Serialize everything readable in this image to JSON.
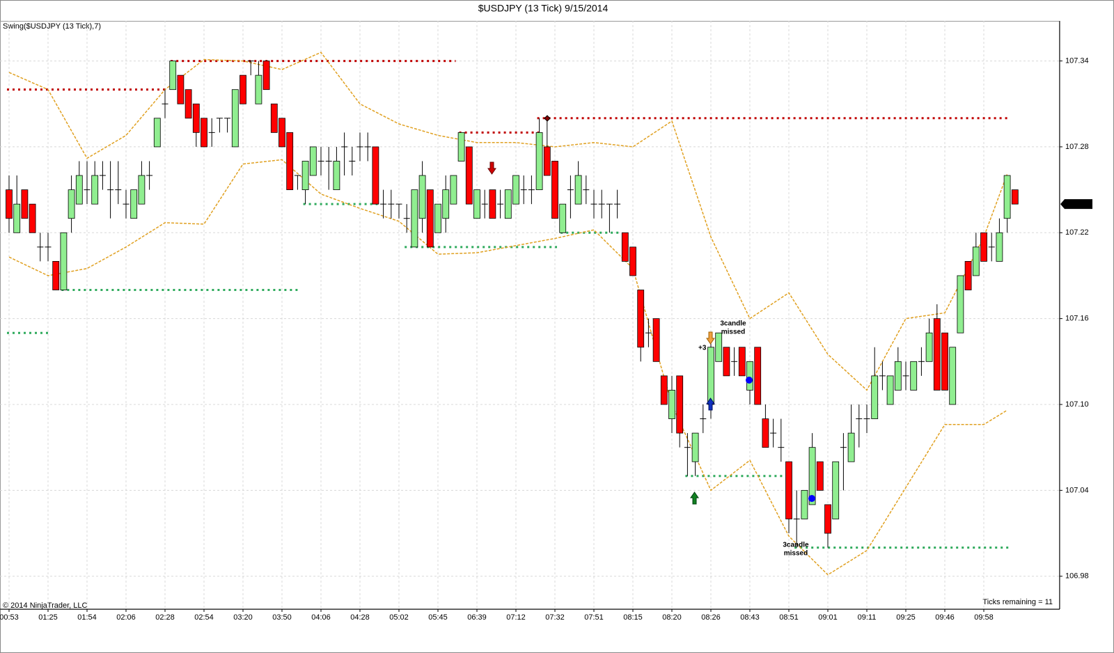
{
  "chart_data": {
    "type": "candlestick",
    "title": "$USDJPY (13 Tick)  9/15/2014",
    "indicator": "Swing($USDJPY (13 Tick),7)",
    "footer_left": "© 2014 NinjaTrader, LLC",
    "footer_right": "Ticks remaining = 11",
    "up_color": "#90ee90",
    "down_color": "#ff0000",
    "ylim": [
      106.957,
      107.368
    ],
    "yticks": [
      106.98,
      107.04,
      {
        "value": 107.1,
        "label": "107.10"
      },
      107.16,
      107.22,
      107.28,
      107.34
    ],
    "grid": true,
    "last_price": 107.24,
    "categories": [
      "00:53",
      null,
      null,
      null,
      null,
      "01:25",
      null,
      null,
      null,
      null,
      "01:54",
      null,
      null,
      null,
      null,
      "02:06",
      null,
      null,
      null,
      null,
      "02:28",
      null,
      null,
      null,
      null,
      "02:54",
      null,
      null,
      null,
      null,
      "03:20",
      null,
      null,
      null,
      null,
      "03:50",
      null,
      null,
      null,
      null,
      "04:06",
      null,
      null,
      null,
      null,
      "04:28",
      null,
      null,
      null,
      null,
      "05:02",
      null,
      null,
      null,
      null,
      "05:45",
      null,
      null,
      null,
      null,
      "06:39",
      null,
      null,
      null,
      null,
      "07:12",
      null,
      null,
      null,
      null,
      "07:32",
      null,
      null,
      null,
      null,
      "07:51",
      null,
      null,
      null,
      null,
      "08:15",
      null,
      null,
      null,
      null,
      "08:20",
      null,
      null,
      null,
      null,
      "08:26",
      null,
      null,
      null,
      null,
      "08:43",
      null,
      null,
      null,
      null,
      "08:51",
      null,
      null,
      null,
      null,
      "09:01",
      null,
      null,
      null,
      null,
      "09:11",
      null,
      null,
      null,
      null,
      "09:25",
      null,
      null,
      null,
      null,
      "09:46",
      null,
      null,
      null,
      null,
      "09:58",
      null,
      null,
      null,
      null
    ],
    "ohlc": [
      [
        107.25,
        107.26,
        107.22,
        107.23
      ],
      [
        107.22,
        107.26,
        107.22,
        107.24
      ],
      [
        107.25,
        107.25,
        107.23,
        107.23
      ],
      [
        107.24,
        107.24,
        107.22,
        107.22
      ],
      [
        107.21,
        107.22,
        107.2,
        107.21
      ],
      [
        107.21,
        107.22,
        107.2,
        107.21
      ],
      [
        107.2,
        107.2,
        107.18,
        107.18
      ],
      [
        107.18,
        107.22,
        107.18,
        107.22
      ],
      [
        107.23,
        107.26,
        107.22,
        107.25
      ],
      [
        107.24,
        107.27,
        107.24,
        107.26
      ],
      [
        107.25,
        107.27,
        107.24,
        107.25
      ],
      [
        107.24,
        107.27,
        107.24,
        107.26
      ],
      [
        107.26,
        107.27,
        107.25,
        107.26
      ],
      [
        107.25,
        107.27,
        107.23,
        107.25
      ],
      [
        107.25,
        107.27,
        107.24,
        107.25
      ],
      [
        107.24,
        107.25,
        107.23,
        107.24
      ],
      [
        107.23,
        107.25,
        107.23,
        107.25
      ],
      [
        107.24,
        107.27,
        107.24,
        107.26
      ],
      [
        107.26,
        107.27,
        107.25,
        107.26
      ],
      [
        107.28,
        107.3,
        107.28,
        107.3
      ],
      [
        107.31,
        107.32,
        107.3,
        107.31
      ],
      [
        107.32,
        107.34,
        107.32,
        107.34
      ],
      [
        107.33,
        107.33,
        107.31,
        107.31
      ],
      [
        107.32,
        107.32,
        107.3,
        107.3
      ],
      [
        107.31,
        107.31,
        107.28,
        107.29
      ],
      [
        107.3,
        107.3,
        107.28,
        107.28
      ],
      [
        107.29,
        107.3,
        107.28,
        107.29
      ],
      [
        107.3,
        107.3,
        107.29,
        107.3
      ],
      [
        107.3,
        107.3,
        107.29,
        107.3
      ],
      [
        107.28,
        107.32,
        107.28,
        107.32
      ],
      [
        107.33,
        107.33,
        107.31,
        107.31
      ],
      [
        107.34,
        107.34,
        107.33,
        107.34
      ],
      [
        107.31,
        107.34,
        107.31,
        107.33
      ],
      [
        107.34,
        107.34,
        107.32,
        107.32
      ],
      [
        107.31,
        107.31,
        107.29,
        107.29
      ],
      [
        107.3,
        107.3,
        107.28,
        107.28
      ],
      [
        107.29,
        107.29,
        107.25,
        107.25
      ],
      [
        107.26,
        107.26,
        107.25,
        107.26
      ],
      [
        107.25,
        107.27,
        107.24,
        107.27
      ],
      [
        107.26,
        107.28,
        107.26,
        107.28
      ],
      [
        107.27,
        107.28,
        107.26,
        107.27
      ],
      [
        107.27,
        107.28,
        107.25,
        107.27
      ],
      [
        107.25,
        107.28,
        107.25,
        107.27
      ],
      [
        107.28,
        107.29,
        107.26,
        107.28
      ],
      [
        107.27,
        107.28,
        107.26,
        107.27
      ],
      [
        107.28,
        107.29,
        107.27,
        107.28
      ],
      [
        107.28,
        107.29,
        107.27,
        107.28
      ],
      [
        107.28,
        107.28,
        107.24,
        107.24
      ],
      [
        107.24,
        107.25,
        107.23,
        107.24
      ],
      [
        107.24,
        107.25,
        107.23,
        107.24
      ],
      [
        107.24,
        107.24,
        107.23,
        107.24
      ],
      [
        107.23,
        107.24,
        107.22,
        107.23
      ],
      [
        107.21,
        107.25,
        107.21,
        107.25
      ],
      [
        107.23,
        107.27,
        107.22,
        107.26
      ],
      [
        107.25,
        107.25,
        107.21,
        107.21
      ],
      [
        107.22,
        107.24,
        107.22,
        107.24
      ],
      [
        107.23,
        107.26,
        107.22,
        107.25
      ],
      [
        107.24,
        107.26,
        107.24,
        107.26
      ],
      [
        107.27,
        107.29,
        107.27,
        107.29
      ],
      [
        107.28,
        107.28,
        107.24,
        107.24
      ],
      [
        107.23,
        107.25,
        107.23,
        107.25
      ],
      [
        107.24,
        107.25,
        107.23,
        107.24
      ],
      [
        107.25,
        107.25,
        107.23,
        107.23
      ],
      [
        107.24,
        107.25,
        107.23,
        107.24
      ],
      [
        107.23,
        107.25,
        107.23,
        107.25
      ],
      [
        107.24,
        107.26,
        107.24,
        107.26
      ],
      [
        107.25,
        107.26,
        107.24,
        107.25
      ],
      [
        107.25,
        107.26,
        107.24,
        107.25
      ],
      [
        107.25,
        107.3,
        107.25,
        107.29
      ],
      [
        107.28,
        107.3,
        107.26,
        107.26
      ],
      [
        107.27,
        107.27,
        107.23,
        107.23
      ],
      [
        107.22,
        107.24,
        107.22,
        107.24
      ],
      [
        107.25,
        107.26,
        107.23,
        107.25
      ],
      [
        107.24,
        107.27,
        107.24,
        107.26
      ],
      [
        107.25,
        107.26,
        107.24,
        107.25
      ],
      [
        107.24,
        107.25,
        107.23,
        107.24
      ],
      [
        107.24,
        107.25,
        107.23,
        107.24
      ],
      [
        107.24,
        107.24,
        107.22,
        107.24
      ],
      [
        107.24,
        107.25,
        107.23,
        107.24
      ],
      [
        107.22,
        107.22,
        107.2,
        107.2
      ],
      [
        107.21,
        107.21,
        107.19,
        107.19
      ],
      [
        107.18,
        107.18,
        107.13,
        107.14
      ],
      [
        107.15,
        107.16,
        107.14,
        107.15
      ],
      [
        107.16,
        107.16,
        107.13,
        107.13
      ],
      [
        107.12,
        107.12,
        107.1,
        107.1
      ],
      [
        107.09,
        107.12,
        107.08,
        107.11
      ],
      [
        107.12,
        107.12,
        107.07,
        107.08
      ],
      [
        107.07,
        107.08,
        107.05,
        107.07
      ],
      [
        107.06,
        107.08,
        107.05,
        107.08
      ],
      [
        107.09,
        107.1,
        107.08,
        107.09
      ],
      [
        107.1,
        107.15,
        107.09,
        107.14
      ],
      [
        107.13,
        107.15,
        107.13,
        107.15
      ],
      [
        107.14,
        107.14,
        107.12,
        107.12
      ],
      [
        107.13,
        107.14,
        107.12,
        107.13
      ],
      [
        107.14,
        107.14,
        107.12,
        107.12
      ],
      [
        107.11,
        107.13,
        107.1,
        107.13
      ],
      [
        107.14,
        107.14,
        107.1,
        107.1
      ],
      [
        107.09,
        107.1,
        107.07,
        107.07
      ],
      [
        107.08,
        107.09,
        107.07,
        107.08
      ],
      [
        107.07,
        107.09,
        107.06,
        107.07
      ],
      [
        107.06,
        107.06,
        107.01,
        107.02
      ],
      [
        107.02,
        107.04,
        107.0,
        107.02
      ],
      [
        107.02,
        107.04,
        107.02,
        107.04
      ],
      [
        107.03,
        107.08,
        107.03,
        107.07
      ],
      [
        107.06,
        107.06,
        107.04,
        107.04
      ],
      [
        107.03,
        107.03,
        107.0,
        107.01
      ],
      [
        107.02,
        107.06,
        107.02,
        107.06
      ],
      [
        107.07,
        107.08,
        107.04,
        107.07
      ],
      [
        107.06,
        107.1,
        107.06,
        107.08
      ],
      [
        107.09,
        107.1,
        107.07,
        107.09
      ],
      [
        107.09,
        107.1,
        107.08,
        107.09
      ],
      [
        107.09,
        107.14,
        107.09,
        107.12
      ],
      [
        107.12,
        107.13,
        107.11,
        107.12
      ],
      [
        107.1,
        107.12,
        107.1,
        107.12
      ],
      [
        107.11,
        107.14,
        107.11,
        107.13
      ],
      [
        107.12,
        107.13,
        107.11,
        107.12
      ],
      [
        107.11,
        107.13,
        107.11,
        107.13
      ],
      [
        107.13,
        107.14,
        107.12,
        107.13
      ],
      [
        107.13,
        107.16,
        107.13,
        107.15
      ],
      [
        107.16,
        107.17,
        107.11,
        107.11
      ],
      [
        107.15,
        107.15,
        107.11,
        107.11
      ],
      [
        107.1,
        107.14,
        107.1,
        107.14
      ],
      [
        107.15,
        107.19,
        107.15,
        107.19
      ],
      [
        107.2,
        107.2,
        107.18,
        107.18
      ],
      [
        107.19,
        107.22,
        107.19,
        107.21
      ],
      [
        107.22,
        107.22,
        107.2,
        107.2
      ],
      [
        107.21,
        107.22,
        107.2,
        107.21
      ],
      [
        107.2,
        107.23,
        107.2,
        107.22
      ],
      [
        107.23,
        107.26,
        107.22,
        107.26
      ],
      [
        107.25,
        107.25,
        107.24,
        107.24
      ]
    ],
    "bands": {
      "color": "#e0a020",
      "x": [
        0,
        5,
        10,
        15,
        20,
        25,
        30,
        35,
        40,
        45,
        50,
        55,
        60,
        65,
        70,
        75,
        80,
        85,
        90,
        95,
        100,
        105,
        110,
        115,
        120,
        125,
        128
      ],
      "upper": [
        107.332,
        107.32,
        107.272,
        107.288,
        107.32,
        107.341,
        107.34,
        107.334,
        107.346,
        107.31,
        107.296,
        107.288,
        107.283,
        107.283,
        107.28,
        107.283,
        107.28,
        107.298,
        107.217,
        107.16,
        107.178,
        107.135,
        107.11,
        107.16,
        107.164,
        107.217,
        107.261
      ],
      "lower": [
        107.203,
        107.19,
        107.195,
        107.21,
        107.227,
        107.226,
        107.268,
        107.271,
        107.247,
        107.237,
        107.228,
        107.205,
        107.206,
        107.211,
        107.216,
        107.222,
        107.195,
        107.1,
        107.04,
        107.061,
        107.008,
        106.981,
        106.998,
        107.042,
        107.086,
        107.086,
        107.096
      ]
    },
    "swing_highs": {
      "color": "#c00000",
      "levels": [
        {
          "value": 107.32,
          "start": 0,
          "end": 20
        },
        {
          "value": 107.34,
          "start": 21,
          "end": 57
        },
        {
          "value": 107.29,
          "start": 58,
          "end": 68
        },
        {
          "value": 107.3,
          "start": 68,
          "end": 128
        }
      ]
    },
    "swing_lows": {
      "color": "#2eaa5c",
      "levels": [
        {
          "value": 107.15,
          "start": 0,
          "end": 5
        },
        {
          "value": 107.18,
          "start": 7,
          "end": 37
        },
        {
          "value": 107.24,
          "start": 38,
          "end": 47
        },
        {
          "value": 107.21,
          "start": 51,
          "end": 70
        },
        {
          "value": 107.22,
          "start": 71,
          "end": 78
        },
        {
          "value": 107.05,
          "start": 87,
          "end": 99
        },
        {
          "value": 107.0,
          "start": 101,
          "end": 128
        }
      ]
    },
    "annotations": [
      [
        "3candle",
        "missed"
      ],
      [
        "3candle",
        "missed"
      ],
      [
        "+3"
      ]
    ]
  }
}
